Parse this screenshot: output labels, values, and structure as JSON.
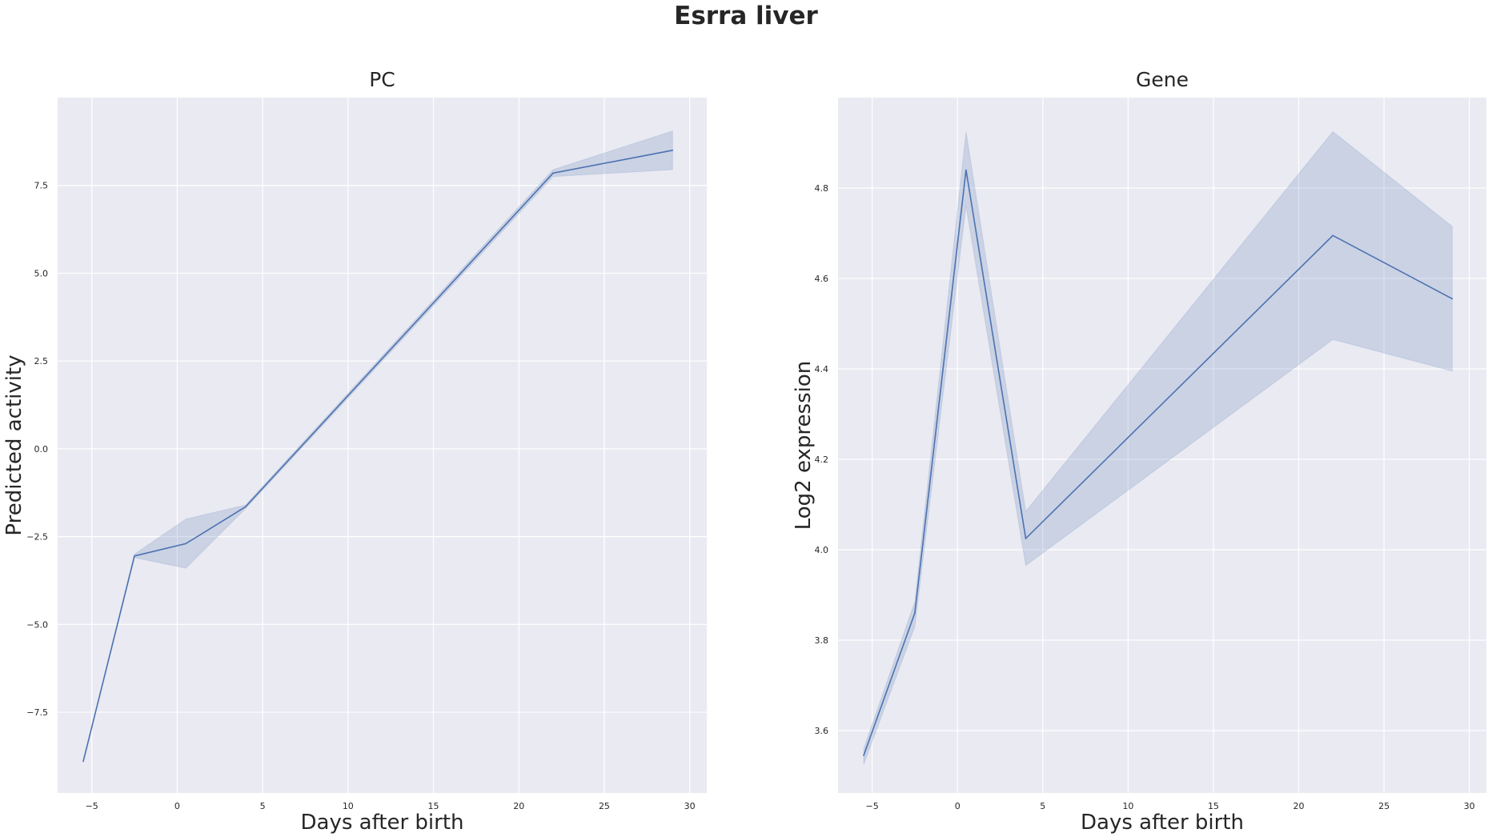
{
  "figure": {
    "title": "Esrra liver"
  },
  "chart_data": [
    {
      "type": "line",
      "title": "PC",
      "xlabel": "Days after birth",
      "ylabel": "Predicted activity",
      "xlim": [
        -7,
        31
      ],
      "ylim": [
        -9.8,
        10.0
      ],
      "xticks": [
        -5,
        0,
        5,
        10,
        15,
        20,
        25,
        30
      ],
      "xtick_labels": [
        "−5",
        "0",
        "5",
        "10",
        "15",
        "20",
        "25",
        "30"
      ],
      "yticks": [
        -7.5,
        -5.0,
        -2.5,
        0.0,
        2.5,
        5.0,
        7.5
      ],
      "ytick_labels": [
        "−7.5",
        "−5.0",
        "−2.5",
        "0.0",
        "2.5",
        "5.0",
        "7.5"
      ],
      "grid": true,
      "color": "#4c72b0",
      "x": [
        -5.5,
        -2.5,
        0.5,
        4.0,
        22.0,
        29.0
      ],
      "y": [
        -8.9,
        -3.05,
        -2.7,
        -1.65,
        7.85,
        8.5
      ],
      "ci_lower": [
        -8.9,
        -3.1,
        -3.4,
        -1.7,
        7.75,
        7.95
      ],
      "ci_upper": [
        -8.9,
        -3.0,
        -2.0,
        -1.6,
        7.95,
        9.05
      ]
    },
    {
      "type": "line",
      "title": "Gene",
      "xlabel": "Days after birth",
      "ylabel": "Log2 expression",
      "xlim": [
        -7,
        31
      ],
      "ylim": [
        3.462,
        5.0
      ],
      "xticks": [
        -5,
        0,
        5,
        10,
        15,
        20,
        25,
        30
      ],
      "xtick_labels": [
        "−5",
        "0",
        "5",
        "10",
        "15",
        "20",
        "25",
        "30"
      ],
      "yticks": [
        3.6,
        3.8,
        4.0,
        4.2,
        4.4,
        4.6,
        4.8
      ],
      "ytick_labels": [
        "3.6",
        "3.8",
        "4.0",
        "4.2",
        "4.4",
        "4.6",
        "4.8"
      ],
      "grid": true,
      "color": "#4c72b0",
      "x": [
        -5.5,
        -2.5,
        0.5,
        4.0,
        22.0,
        29.0
      ],
      "y": [
        3.545,
        3.86,
        4.84,
        4.025,
        4.695,
        4.555
      ],
      "ci_lower": [
        3.525,
        3.83,
        4.76,
        3.965,
        4.465,
        4.395
      ],
      "ci_upper": [
        3.56,
        3.885,
        4.925,
        4.085,
        4.925,
        4.715
      ]
    }
  ]
}
